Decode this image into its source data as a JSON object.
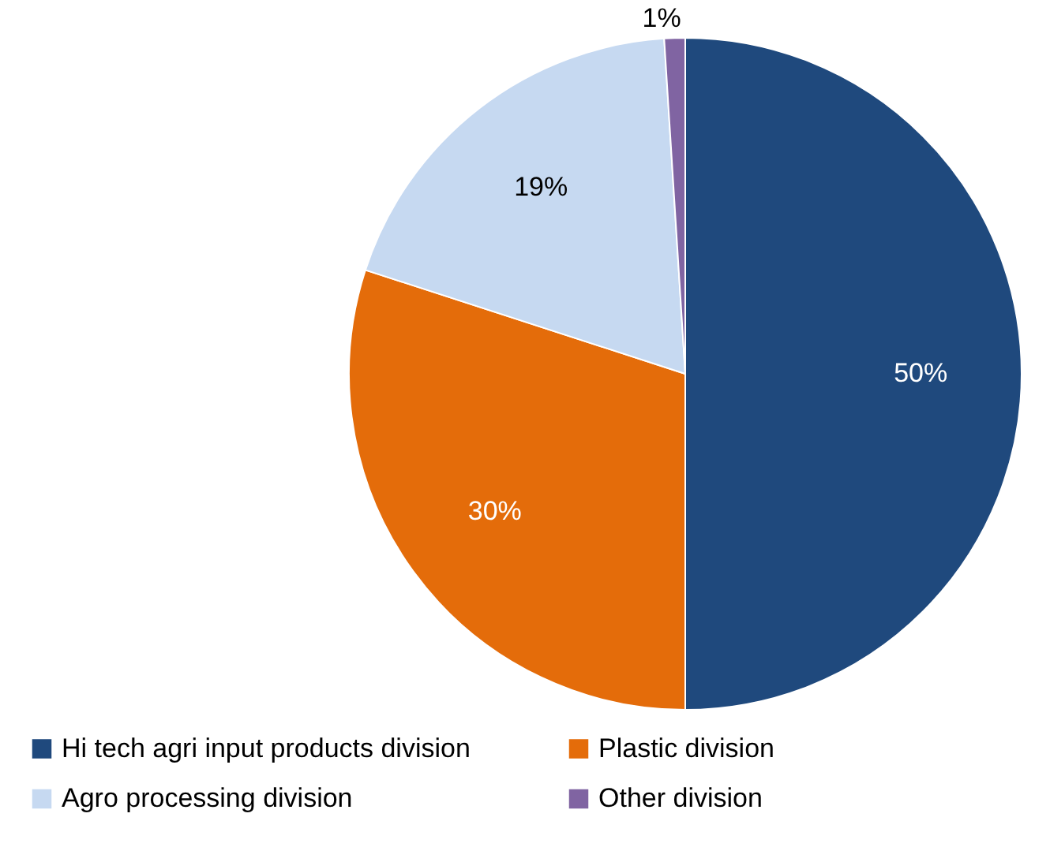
{
  "chart_data": {
    "type": "pie",
    "categories": [
      "Hi tech agri input products division",
      "Plastic division",
      "Agro processing division",
      "Other division"
    ],
    "values": [
      50,
      30,
      19,
      1
    ],
    "colors": [
      "#1f497d",
      "#e46c0a",
      "#c6d9f1",
      "#8064a2"
    ],
    "value_labels": [
      "50%",
      "30%",
      "19%",
      "1%"
    ],
    "legend": "bottom"
  }
}
